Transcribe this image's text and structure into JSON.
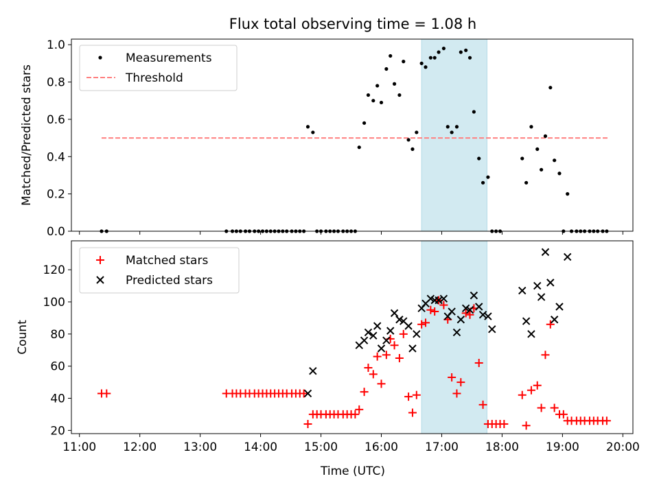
{
  "figure": {
    "title": "Flux total observing time = 1.08 h",
    "xlabel": "Time (UTC)",
    "x_ticks": [
      "11:00",
      "12:00",
      "13:00",
      "14:00",
      "15:00",
      "16:00",
      "17:00",
      "18:00",
      "19:00",
      "20:00"
    ],
    "highlight_interval": [
      "16:40",
      "17:45"
    ],
    "highlight_color": "#add8e6"
  },
  "chart_data": [
    {
      "type": "scatter",
      "ylabel": "Matched/Predicted stars",
      "xlim": [
        "10:52",
        "20:10"
      ],
      "ylim": [
        0,
        1.03
      ],
      "y_ticks": [
        "0.0",
        "0.2",
        "0.4",
        "0.6",
        "0.8",
        "1.0"
      ],
      "legend": {
        "placement": "top-left",
        "entries": [
          "Measurements",
          "Threshold"
        ]
      },
      "threshold": {
        "name": "Threshold",
        "value": 0.5,
        "x_range": [
          "11:22",
          "19:45"
        ],
        "color": "#ff8080"
      },
      "series": [
        {
          "name": "Measurements",
          "color": "#000000",
          "points": [
            [
              "11:22",
              0
            ],
            [
              "11:27",
              0
            ],
            [
              "13:26",
              0
            ],
            [
              "13:32",
              0
            ],
            [
              "13:36",
              0
            ],
            [
              "13:40",
              0
            ],
            [
              "13:45",
              0
            ],
            [
              "13:49",
              0
            ],
            [
              "13:54",
              0
            ],
            [
              "13:58",
              0
            ],
            [
              "14:02",
              0
            ],
            [
              "14:06",
              0
            ],
            [
              "14:10",
              0
            ],
            [
              "14:14",
              0
            ],
            [
              "14:18",
              0
            ],
            [
              "14:22",
              0
            ],
            [
              "14:26",
              0
            ],
            [
              "14:31",
              0
            ],
            [
              "14:35",
              0
            ],
            [
              "14:39",
              0
            ],
            [
              "14:43",
              0
            ],
            [
              "14:47",
              0.56
            ],
            [
              "14:52",
              0.53
            ],
            [
              "14:56",
              0
            ],
            [
              "15:00",
              0
            ],
            [
              "15:05",
              0
            ],
            [
              "15:09",
              0
            ],
            [
              "15:13",
              0
            ],
            [
              "15:17",
              0
            ],
            [
              "15:22",
              0
            ],
            [
              "15:26",
              0
            ],
            [
              "15:30",
              0
            ],
            [
              "15:34",
              0
            ],
            [
              "15:38",
              0.45
            ],
            [
              "15:43",
              0.58
            ],
            [
              "15:47",
              0.73
            ],
            [
              "15:52",
              0.7
            ],
            [
              "15:56",
              0.78
            ],
            [
              "16:00",
              0.69
            ],
            [
              "16:05",
              0.87
            ],
            [
              "16:09",
              0.94
            ],
            [
              "16:13",
              0.79
            ],
            [
              "16:18",
              0.73
            ],
            [
              "16:22",
              0.91
            ],
            [
              "16:27",
              0.49
            ],
            [
              "16:31",
              0.44
            ],
            [
              "16:35",
              0.53
            ],
            [
              "16:40",
              0.9
            ],
            [
              "16:44",
              0.88
            ],
            [
              "16:49",
              0.93
            ],
            [
              "16:53",
              0.93
            ],
            [
              "16:57",
              0.96
            ],
            [
              "17:02",
              0.98
            ],
            [
              "17:06",
              0.56
            ],
            [
              "17:10",
              0.53
            ],
            [
              "17:15",
              0.56
            ],
            [
              "17:19",
              0.96
            ],
            [
              "17:24",
              0.97
            ],
            [
              "17:28",
              0.93
            ],
            [
              "17:32",
              0.64
            ],
            [
              "17:37",
              0.39
            ],
            [
              "17:41",
              0.26
            ],
            [
              "17:46",
              0.29
            ],
            [
              "17:50",
              0
            ],
            [
              "17:54",
              0
            ],
            [
              "17:58",
              0
            ],
            [
              "18:20",
              0.39
            ],
            [
              "18:24",
              0.26
            ],
            [
              "18:29",
              0.56
            ],
            [
              "18:35",
              0.44
            ],
            [
              "18:39",
              0.33
            ],
            [
              "18:43",
              0.51
            ],
            [
              "18:48",
              0.77
            ],
            [
              "18:52",
              0.38
            ],
            [
              "18:57",
              0.31
            ],
            [
              "19:01",
              0
            ],
            [
              "19:05",
              0.2
            ],
            [
              "19:09",
              0
            ],
            [
              "19:14",
              0
            ],
            [
              "19:18",
              0
            ],
            [
              "19:22",
              0
            ],
            [
              "19:27",
              0
            ],
            [
              "19:31",
              0
            ],
            [
              "19:35",
              0
            ],
            [
              "19:40",
              0
            ],
            [
              "19:44",
              0
            ]
          ]
        }
      ]
    },
    {
      "type": "scatter",
      "ylabel": "Count",
      "xlim": [
        "10:52",
        "20:10"
      ],
      "ylim": [
        18,
        138
      ],
      "y_ticks": [
        "20",
        "40",
        "60",
        "80",
        "100",
        "120"
      ],
      "legend": {
        "placement": "top-left",
        "entries": [
          "Matched stars",
          "Predicted stars"
        ]
      },
      "series": [
        {
          "name": "Matched stars",
          "marker": "plus",
          "color": "#ff0000",
          "points": [
            [
              "11:22",
              43
            ],
            [
              "11:27",
              43
            ],
            [
              "13:26",
              43
            ],
            [
              "13:32",
              43
            ],
            [
              "13:36",
              43
            ],
            [
              "13:40",
              43
            ],
            [
              "13:45",
              43
            ],
            [
              "13:49",
              43
            ],
            [
              "13:54",
              43
            ],
            [
              "13:58",
              43
            ],
            [
              "14:02",
              43
            ],
            [
              "14:06",
              43
            ],
            [
              "14:10",
              43
            ],
            [
              "14:14",
              43
            ],
            [
              "14:18",
              43
            ],
            [
              "14:22",
              43
            ],
            [
              "14:26",
              43
            ],
            [
              "14:31",
              43
            ],
            [
              "14:35",
              43
            ],
            [
              "14:39",
              43
            ],
            [
              "14:43",
              43
            ],
            [
              "14:47",
              24
            ],
            [
              "14:52",
              30
            ],
            [
              "14:56",
              30
            ],
            [
              "15:00",
              30
            ],
            [
              "15:05",
              30
            ],
            [
              "15:09",
              30
            ],
            [
              "15:13",
              30
            ],
            [
              "15:17",
              30
            ],
            [
              "15:22",
              30
            ],
            [
              "15:26",
              30
            ],
            [
              "15:30",
              30
            ],
            [
              "15:34",
              30
            ],
            [
              "15:38",
              33
            ],
            [
              "15:43",
              44
            ],
            [
              "15:47",
              59
            ],
            [
              "15:52",
              55
            ],
            [
              "15:56",
              66
            ],
            [
              "16:00",
              49
            ],
            [
              "16:05",
              67
            ],
            [
              "16:09",
              77
            ],
            [
              "16:13",
              73
            ],
            [
              "16:18",
              65
            ],
            [
              "16:22",
              80
            ],
            [
              "16:27",
              41
            ],
            [
              "16:31",
              31
            ],
            [
              "16:35",
              42
            ],
            [
              "16:40",
              86
            ],
            [
              "16:44",
              87
            ],
            [
              "16:49",
              95
            ],
            [
              "16:53",
              94
            ],
            [
              "16:57",
              101
            ],
            [
              "17:02",
              98
            ],
            [
              "17:06",
              89
            ],
            [
              "17:10",
              53
            ],
            [
              "17:15",
              43
            ],
            [
              "17:19",
              50
            ],
            [
              "17:24",
              93
            ],
            [
              "17:28",
              92
            ],
            [
              "17:32",
              96
            ],
            [
              "17:37",
              62
            ],
            [
              "17:41",
              36
            ],
            [
              "17:46",
              24
            ],
            [
              "17:50",
              24
            ],
            [
              "17:54",
              24
            ],
            [
              "17:58",
              24
            ],
            [
              "18:02",
              24
            ],
            [
              "18:20",
              42
            ],
            [
              "18:24",
              23
            ],
            [
              "18:29",
              45
            ],
            [
              "18:35",
              48
            ],
            [
              "18:39",
              34
            ],
            [
              "18:43",
              67
            ],
            [
              "18:48",
              86
            ],
            [
              "18:52",
              34
            ],
            [
              "18:57",
              30
            ],
            [
              "19:01",
              30
            ],
            [
              "19:05",
              26
            ],
            [
              "19:09",
              26
            ],
            [
              "19:14",
              26
            ],
            [
              "19:18",
              26
            ],
            [
              "19:22",
              26
            ],
            [
              "19:27",
              26
            ],
            [
              "19:31",
              26
            ],
            [
              "19:35",
              26
            ],
            [
              "19:40",
              26
            ],
            [
              "19:44",
              26
            ]
          ]
        },
        {
          "name": "Predicted stars",
          "marker": "x",
          "color": "#000000",
          "points": [
            [
              "14:47",
              43
            ],
            [
              "14:52",
              57
            ],
            [
              "15:38",
              73
            ],
            [
              "15:43",
              76
            ],
            [
              "15:47",
              81
            ],
            [
              "15:52",
              79
            ],
            [
              "15:56",
              85
            ],
            [
              "16:00",
              71
            ],
            [
              "16:05",
              76
            ],
            [
              "16:09",
              82
            ],
            [
              "16:13",
              93
            ],
            [
              "16:18",
              89
            ],
            [
              "16:22",
              88
            ],
            [
              "16:27",
              85
            ],
            [
              "16:31",
              71
            ],
            [
              "16:35",
              80
            ],
            [
              "16:40",
              96
            ],
            [
              "16:44",
              99
            ],
            [
              "16:49",
              102
            ],
            [
              "16:53",
              101
            ],
            [
              "16:57",
              101
            ],
            [
              "17:02",
              102
            ],
            [
              "17:06",
              91
            ],
            [
              "17:10",
              94
            ],
            [
              "17:15",
              81
            ],
            [
              "17:19",
              89
            ],
            [
              "17:24",
              96
            ],
            [
              "17:28",
              95
            ],
            [
              "17:32",
              104
            ],
            [
              "17:37",
              97
            ],
            [
              "17:41",
              92
            ],
            [
              "17:46",
              91
            ],
            [
              "17:50",
              83
            ],
            [
              "18:20",
              107
            ],
            [
              "18:24",
              88
            ],
            [
              "18:29",
              80
            ],
            [
              "18:35",
              110
            ],
            [
              "18:39",
              103
            ],
            [
              "18:43",
              131
            ],
            [
              "18:48",
              112
            ],
            [
              "18:52",
              89
            ],
            [
              "18:57",
              97
            ],
            [
              "19:05",
              128
            ]
          ]
        }
      ]
    }
  ]
}
